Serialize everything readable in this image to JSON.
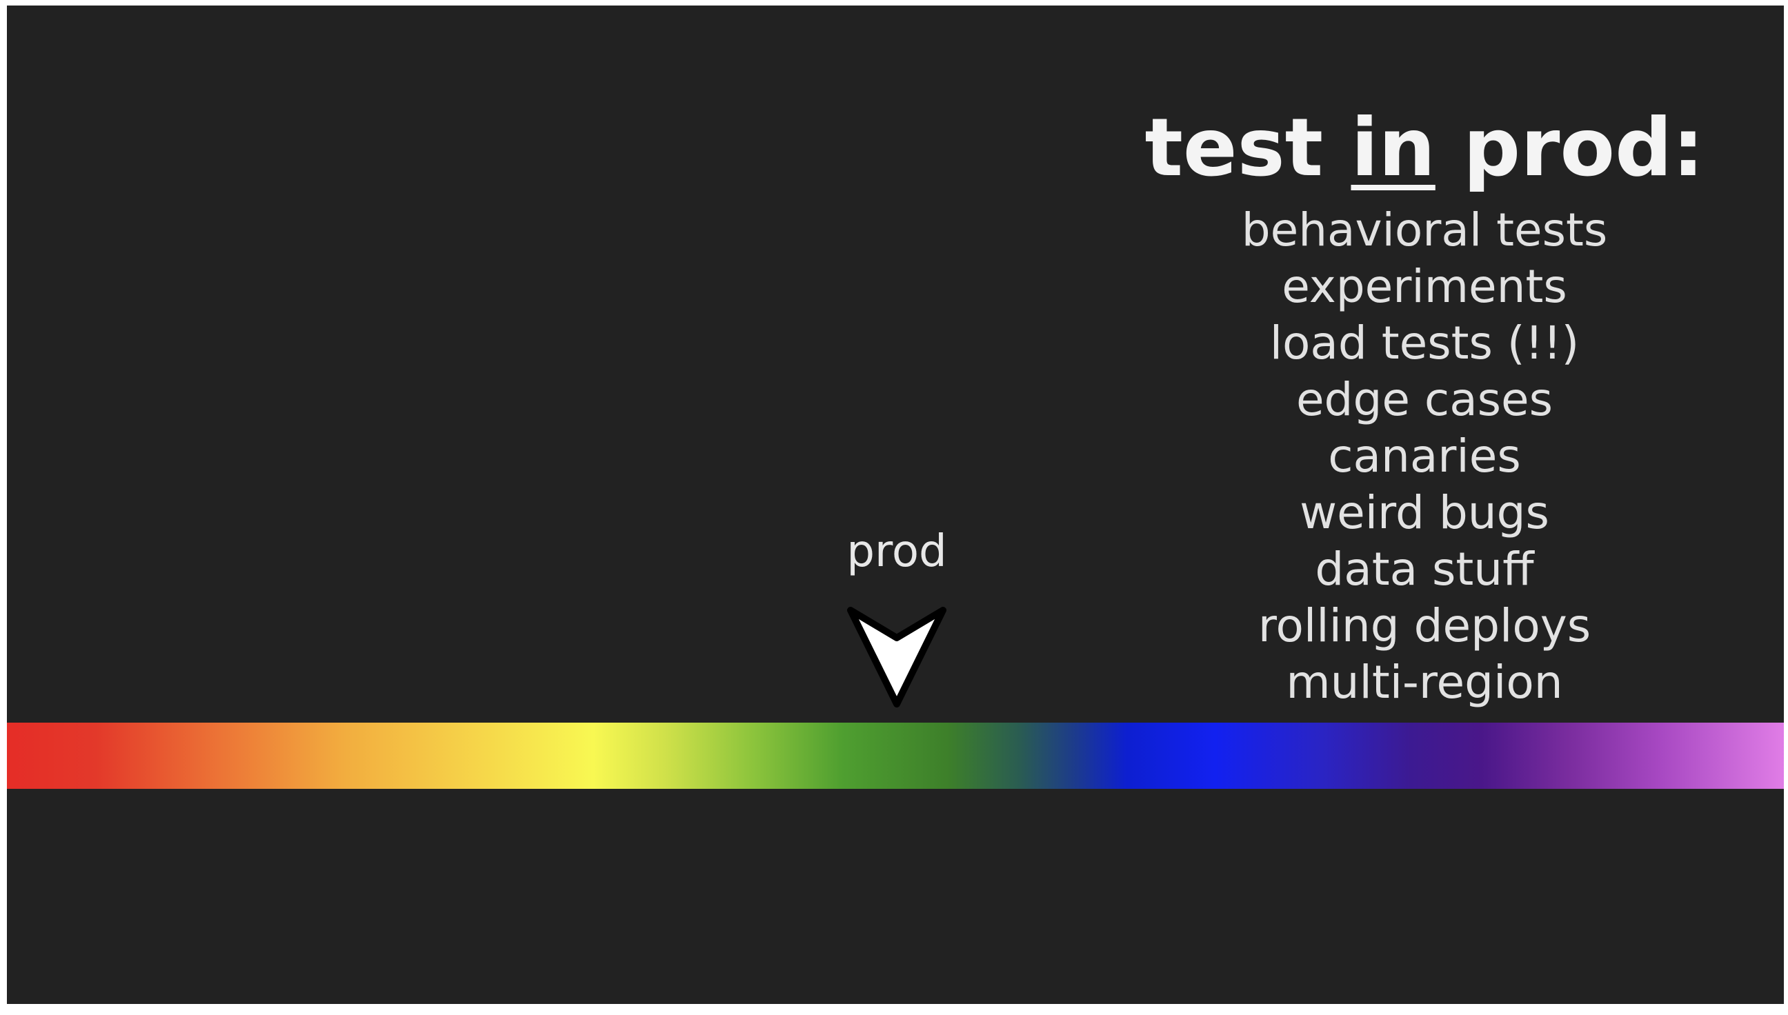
{
  "slide": {
    "title_before": "test ",
    "title_emphasis": "in",
    "title_after": " prod:",
    "items": [
      "behavioral tests",
      "experiments",
      "load tests (!!)",
      "edge cases",
      "canaries",
      "weird bugs",
      "data stuff",
      "rolling deploys",
      "multi-region"
    ],
    "marker_label": "prod",
    "marker_icon": "downward-arrow-icon",
    "colors": {
      "background": "#222222",
      "text": "#e8e8e8",
      "spectrum_start": "#e52d27",
      "spectrum_end": "#e07de6"
    }
  }
}
